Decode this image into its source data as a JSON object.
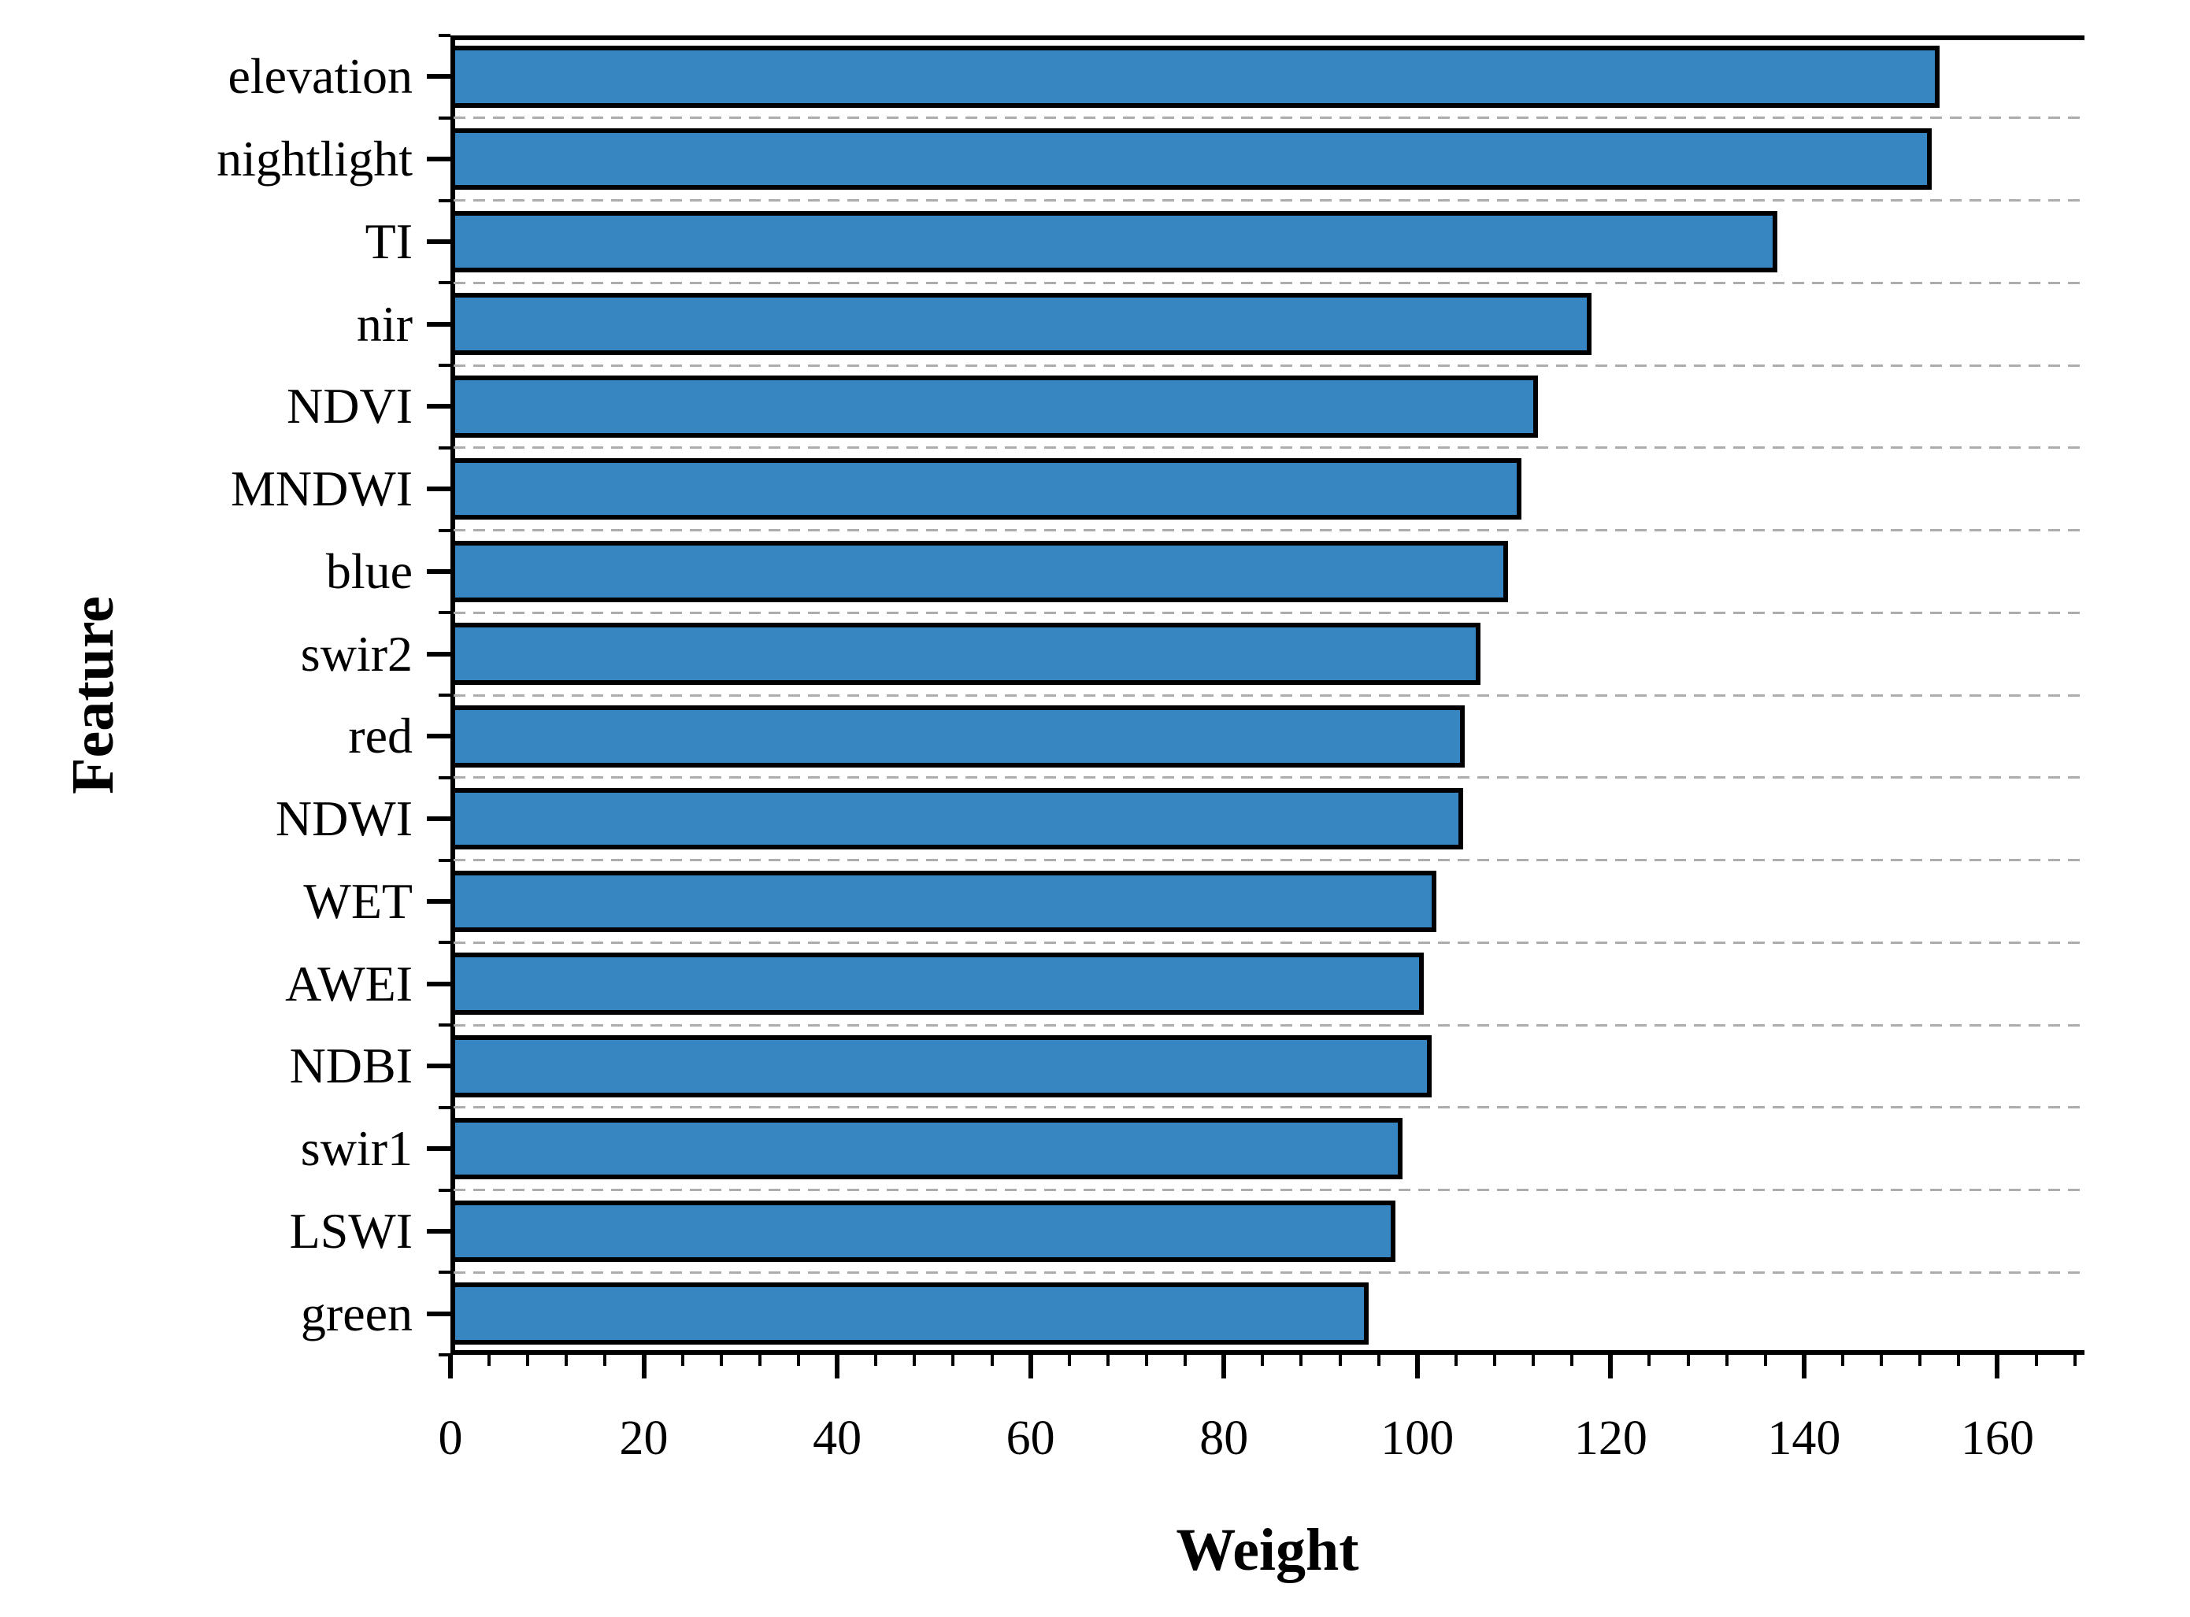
{
  "chart_data": {
    "type": "bar",
    "orientation": "horizontal",
    "title": "",
    "xlabel": "Weight",
    "ylabel": "Feature",
    "categories": [
      "elevation",
      "nightlight",
      "TI",
      "nir",
      "NDVI",
      "MNDWI",
      "blue",
      "swir2",
      "red",
      "NDWI",
      "WET",
      "AWEI",
      "NDBI",
      "swir1",
      "LSWI",
      "green"
    ],
    "values": [
      154.0,
      153.2,
      137.2,
      118.0,
      112.5,
      110.8,
      109.4,
      106.5,
      104.9,
      104.7,
      102.0,
      100.7,
      101.5,
      98.5,
      97.7,
      95.0
    ],
    "xlim": [
      0,
      169
    ],
    "x_tick_labels": [
      "0",
      "20",
      "40",
      "60",
      "80",
      "100",
      "120",
      "140",
      "160"
    ],
    "x_tick_values": [
      0,
      20,
      40,
      60,
      80,
      100,
      120,
      140,
      160
    ],
    "x_minor_tick_step": 4,
    "grid": "dashed horizontal gridlines at category boundaries",
    "legend_position": "none",
    "bar_fill_color": "#3786c1",
    "bar_edge_color": "#000000",
    "gridline_color": "#adadad",
    "axis_color": "#000000"
  }
}
